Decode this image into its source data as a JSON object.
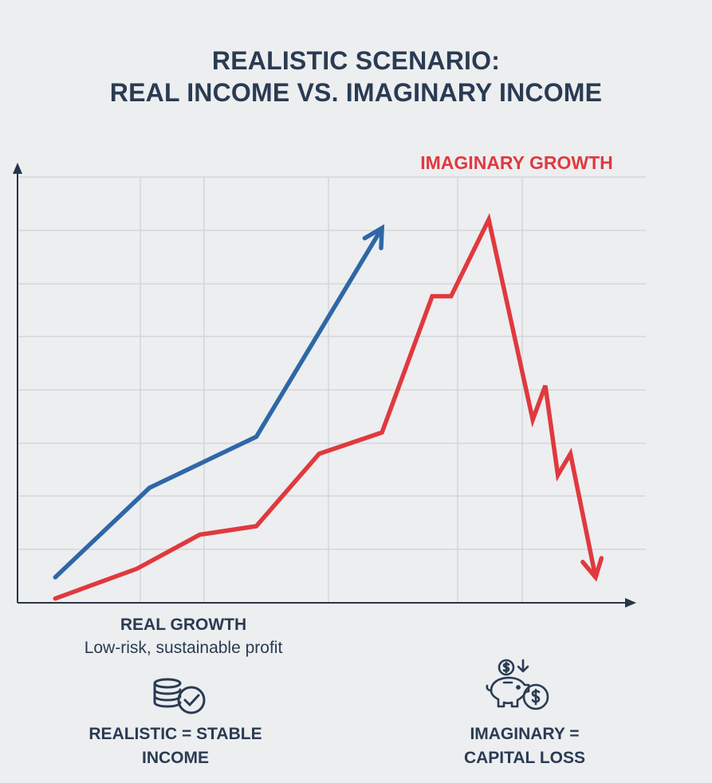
{
  "title": {
    "line1": "REALISTIC SCENARIO:",
    "line2": "REAL INCOME VS. IMAGINARY INCOME"
  },
  "colors": {
    "real": "#2f67a6",
    "imaginary": "#e0393e",
    "axis": "#26364a",
    "grid": "#d3d6da"
  },
  "chart_data": {
    "type": "line",
    "title": "REALISTIC SCENARIO: REAL INCOME VS. IMAGINARY INCOME",
    "xlim": [
      0,
      100
    ],
    "ylim": [
      0,
      100
    ],
    "grid": true,
    "series": [
      {
        "name": "REAL GROWTH",
        "color": "#2f67a6",
        "end_marker": "arrow-up",
        "x": [
          6,
          21,
          38,
          58
        ],
        "y": [
          6,
          27,
          39,
          88
        ]
      },
      {
        "name": "IMAGINARY GROWTH",
        "color": "#e0393e",
        "end_marker": "arrow-down",
        "x": [
          6,
          19,
          29,
          38,
          48,
          58,
          66,
          69,
          75,
          82,
          84,
          86,
          88,
          92
        ],
        "y": [
          1,
          8,
          16,
          18,
          35,
          40,
          72,
          72,
          90,
          43,
          51,
          30,
          35,
          6
        ]
      }
    ]
  },
  "captions": {
    "real_head": "REAL GROWTH",
    "real_sub": "Low-risk, sustainable profit",
    "left_bottom_line1": "REALISTIC = STABLE",
    "left_bottom_line2": "INCOME",
    "right_bottom_line1": "IMAGINARY =",
    "right_bottom_line2": "CAPITAL LOSS"
  },
  "icons": {
    "left": "coin-stack-check-icon",
    "right": "piggy-bank-dollar-icon"
  }
}
